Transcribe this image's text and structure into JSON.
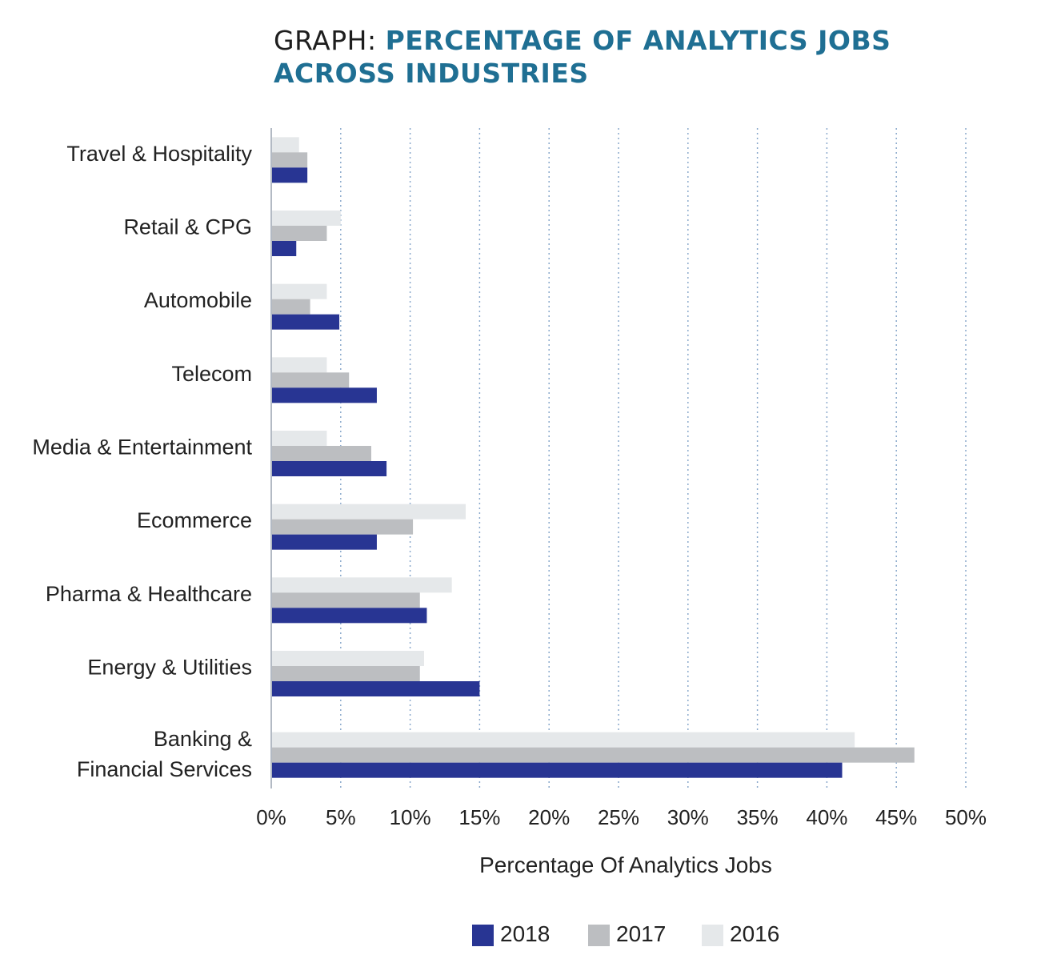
{
  "title": {
    "prefix": "GRAPH:",
    "line1": "PERCENTAGE OF ANALYTICS JOBS",
    "line2": "ACROSS INDUSTRIES"
  },
  "colors": {
    "title_accent": "#1f6f93",
    "series_2018": "#283593",
    "series_2017": "#bcbec1",
    "series_2016": "#e5e8ea",
    "grid": "#8aa9cc"
  },
  "chart_data": {
    "type": "bar",
    "orientation": "horizontal",
    "categories": [
      [
        "Travel & Hospitality"
      ],
      [
        "Retail &  CPG"
      ],
      [
        "Automobile"
      ],
      [
        "Telecom"
      ],
      [
        "Media & Entertainment"
      ],
      [
        "Ecommerce"
      ],
      [
        "Pharma & Healthcare"
      ],
      [
        "Energy & Utilities"
      ],
      [
        "Banking &",
        "Financial Services"
      ]
    ],
    "series": [
      {
        "name": "2016",
        "values": [
          2,
          5,
          4,
          4,
          4,
          14,
          13,
          11,
          42
        ]
      },
      {
        "name": "2017",
        "values": [
          2.6,
          4,
          2.8,
          5.6,
          7.2,
          10.2,
          10.7,
          10.7,
          46.3
        ]
      },
      {
        "name": "2018",
        "values": [
          2.6,
          1.8,
          4.9,
          7.6,
          8.3,
          7.6,
          11.2,
          15,
          41.1
        ]
      }
    ],
    "xlabel": "Percentage Of Analytics Jobs",
    "ylabel": "",
    "xlim": [
      0,
      50
    ],
    "xticks": [
      "0%",
      "5%",
      "10%",
      "15%",
      "20%",
      "25%",
      "30%",
      "35%",
      "40%",
      "45%",
      "50%"
    ],
    "grid": "vertical dotted",
    "legend": {
      "position": "bottom",
      "items": [
        "2018",
        "2017",
        "2016"
      ]
    }
  }
}
